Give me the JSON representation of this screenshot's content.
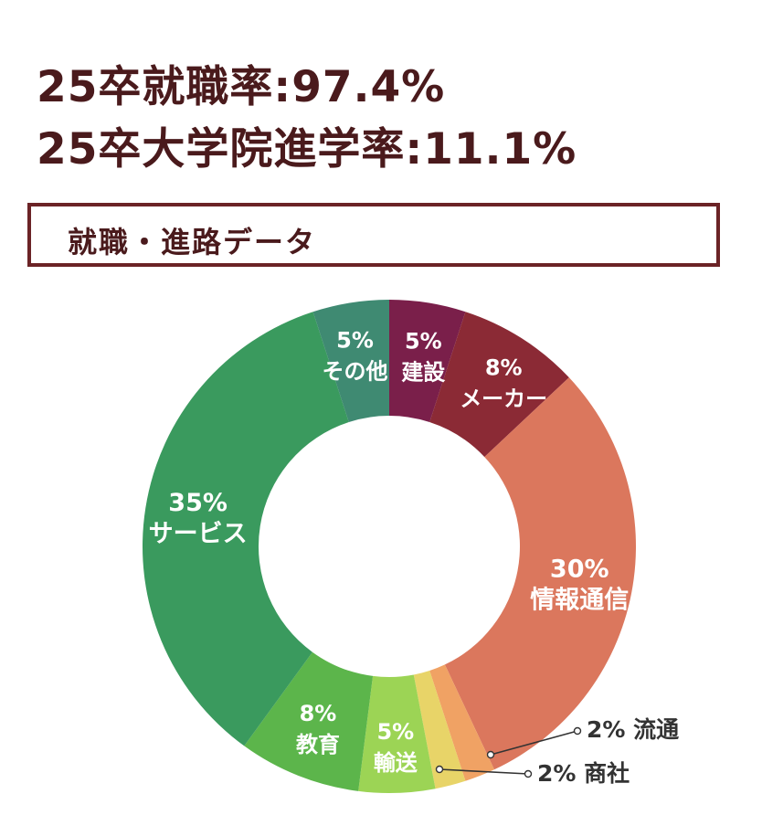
{
  "header": {
    "line1": "25卒就職率:97.4%",
    "line2": "25卒大学院進学率:11.1%"
  },
  "section": {
    "title": "就職・進路データ"
  },
  "chart_data": {
    "type": "pie",
    "donut": true,
    "start": "top",
    "direction": "clockwise",
    "slices": [
      {
        "name": "建設",
        "value": 5,
        "color": "#7a1f4a"
      },
      {
        "name": "メーカー",
        "value": 8,
        "color": "#8b2a35"
      },
      {
        "name": "情報通信",
        "value": 30,
        "color": "#db775d"
      },
      {
        "name": "流通",
        "value": 2,
        "color": "#f0a264"
      },
      {
        "name": "商社",
        "value": 2,
        "color": "#e8d468"
      },
      {
        "name": "輸送",
        "value": 5,
        "color": "#9cd455"
      },
      {
        "name": "教育",
        "value": 8,
        "color": "#5cb54b"
      },
      {
        "name": "サービス",
        "value": 35,
        "color": "#3a9a5e"
      },
      {
        "name": "その他",
        "value": 5,
        "color": "#3f8a72"
      }
    ],
    "labels": {
      "建設": {
        "percent": "5%",
        "text": "建設"
      },
      "メーカー": {
        "percent": "8%",
        "text": "メーカー"
      },
      "情報通信": {
        "percent": "30%",
        "text": "情報通信"
      },
      "流通": {
        "percent": "2%",
        "text": "流通"
      },
      "商社": {
        "percent": "2%",
        "text": "商社"
      },
      "輸送": {
        "percent": "5%",
        "text": "輸送"
      },
      "教育": {
        "percent": "8%",
        "text": "教育"
      },
      "サービス": {
        "percent": "35%",
        "text": "サービス"
      },
      "その他": {
        "percent": "5%",
        "text": "その他"
      }
    }
  }
}
